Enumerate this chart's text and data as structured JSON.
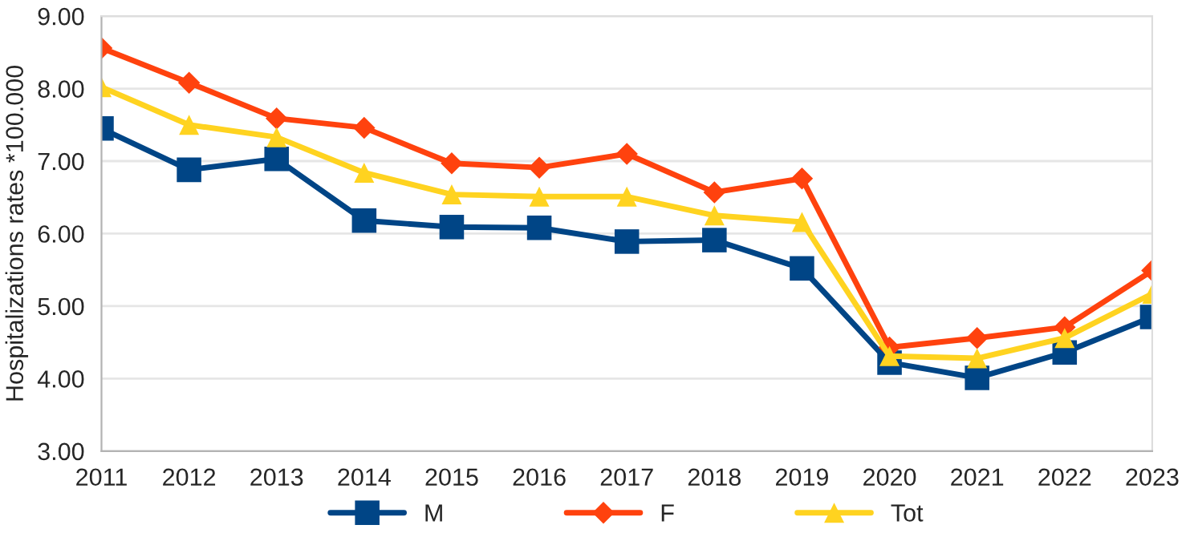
{
  "chart_data": {
    "type": "line",
    "ylabel": "Hospitalizations rates *100.000",
    "categories": [
      "2011",
      "2012",
      "2013",
      "2014",
      "2015",
      "2016",
      "2017",
      "2018",
      "2019",
      "2020",
      "2021",
      "2022",
      "2023"
    ],
    "series": [
      {
        "name": "M",
        "color": "#004586",
        "marker": "square",
        "values": [
          7.45,
          6.88,
          7.03,
          6.18,
          6.09,
          6.08,
          5.89,
          5.91,
          5.52,
          4.22,
          4.01,
          4.36,
          4.85
        ]
      },
      {
        "name": "F",
        "color": "#ff420e",
        "marker": "diamond",
        "values": [
          8.56,
          8.08,
          7.59,
          7.46,
          6.97,
          6.91,
          7.1,
          6.57,
          6.76,
          4.43,
          4.56,
          4.71,
          5.49
        ]
      },
      {
        "name": "Tot",
        "color": "#ffd320",
        "marker": "triangle",
        "values": [
          8.02,
          7.5,
          7.33,
          6.84,
          6.54,
          6.51,
          6.51,
          6.25,
          6.16,
          4.31,
          4.28,
          4.56,
          5.17
        ]
      }
    ],
    "ylim": [
      3,
      9
    ],
    "yticks": [
      {
        "value": 3,
        "label": "3.00"
      },
      {
        "value": 4,
        "label": "4.00"
      },
      {
        "value": 5,
        "label": "5.00"
      },
      {
        "value": 6,
        "label": "6.00"
      },
      {
        "value": 7,
        "label": "7.00"
      },
      {
        "value": 8,
        "label": "8.00"
      },
      {
        "value": 9,
        "label": "9.00"
      }
    ],
    "grid": "y",
    "legend": "bottom"
  }
}
